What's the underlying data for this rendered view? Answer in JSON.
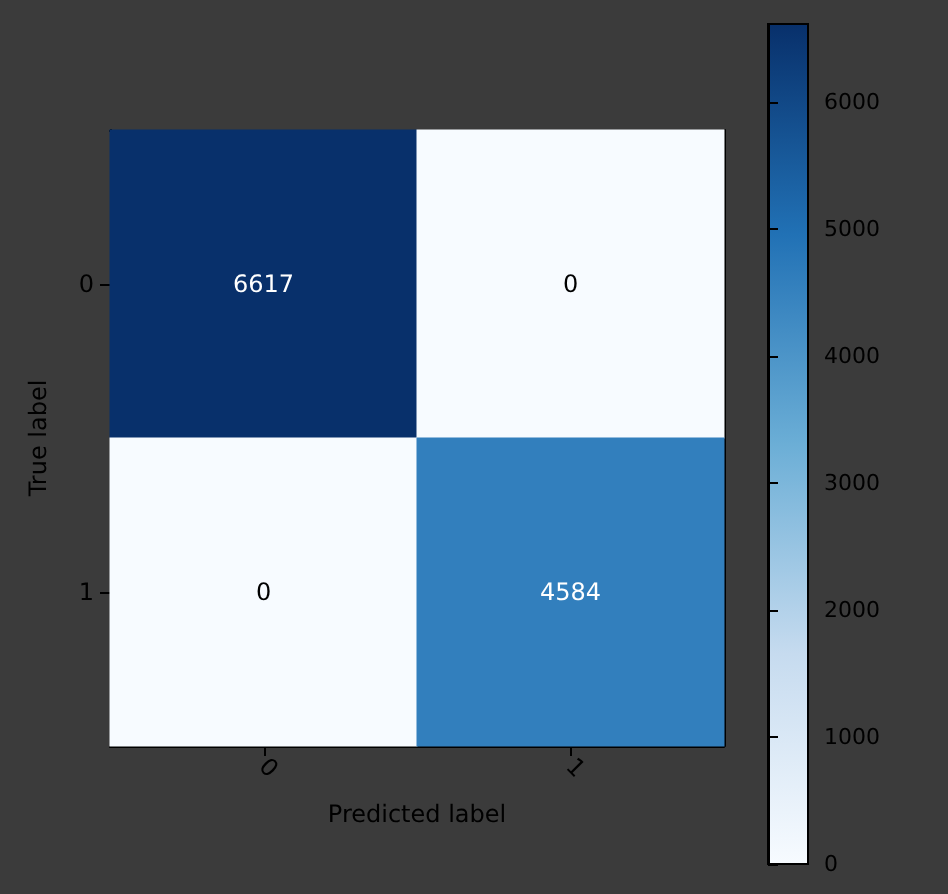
{
  "chart_data": {
    "type": "heatmap",
    "xlabel": "Predicted label",
    "ylabel": "True label",
    "categories": [
      "0",
      "1"
    ],
    "y_categories": [
      "0",
      "1"
    ],
    "cells": [
      [
        6617,
        0
      ],
      [
        0,
        4584
      ]
    ],
    "data_labels": true,
    "clim": [
      0,
      6617
    ],
    "cticks": [
      0,
      1000,
      2000,
      3000,
      4000,
      5000,
      6000
    ],
    "colors": [
      "#f7fbff",
      "#c6dbef",
      "#6baed6",
      "#2171b5",
      "#08306b"
    ]
  }
}
